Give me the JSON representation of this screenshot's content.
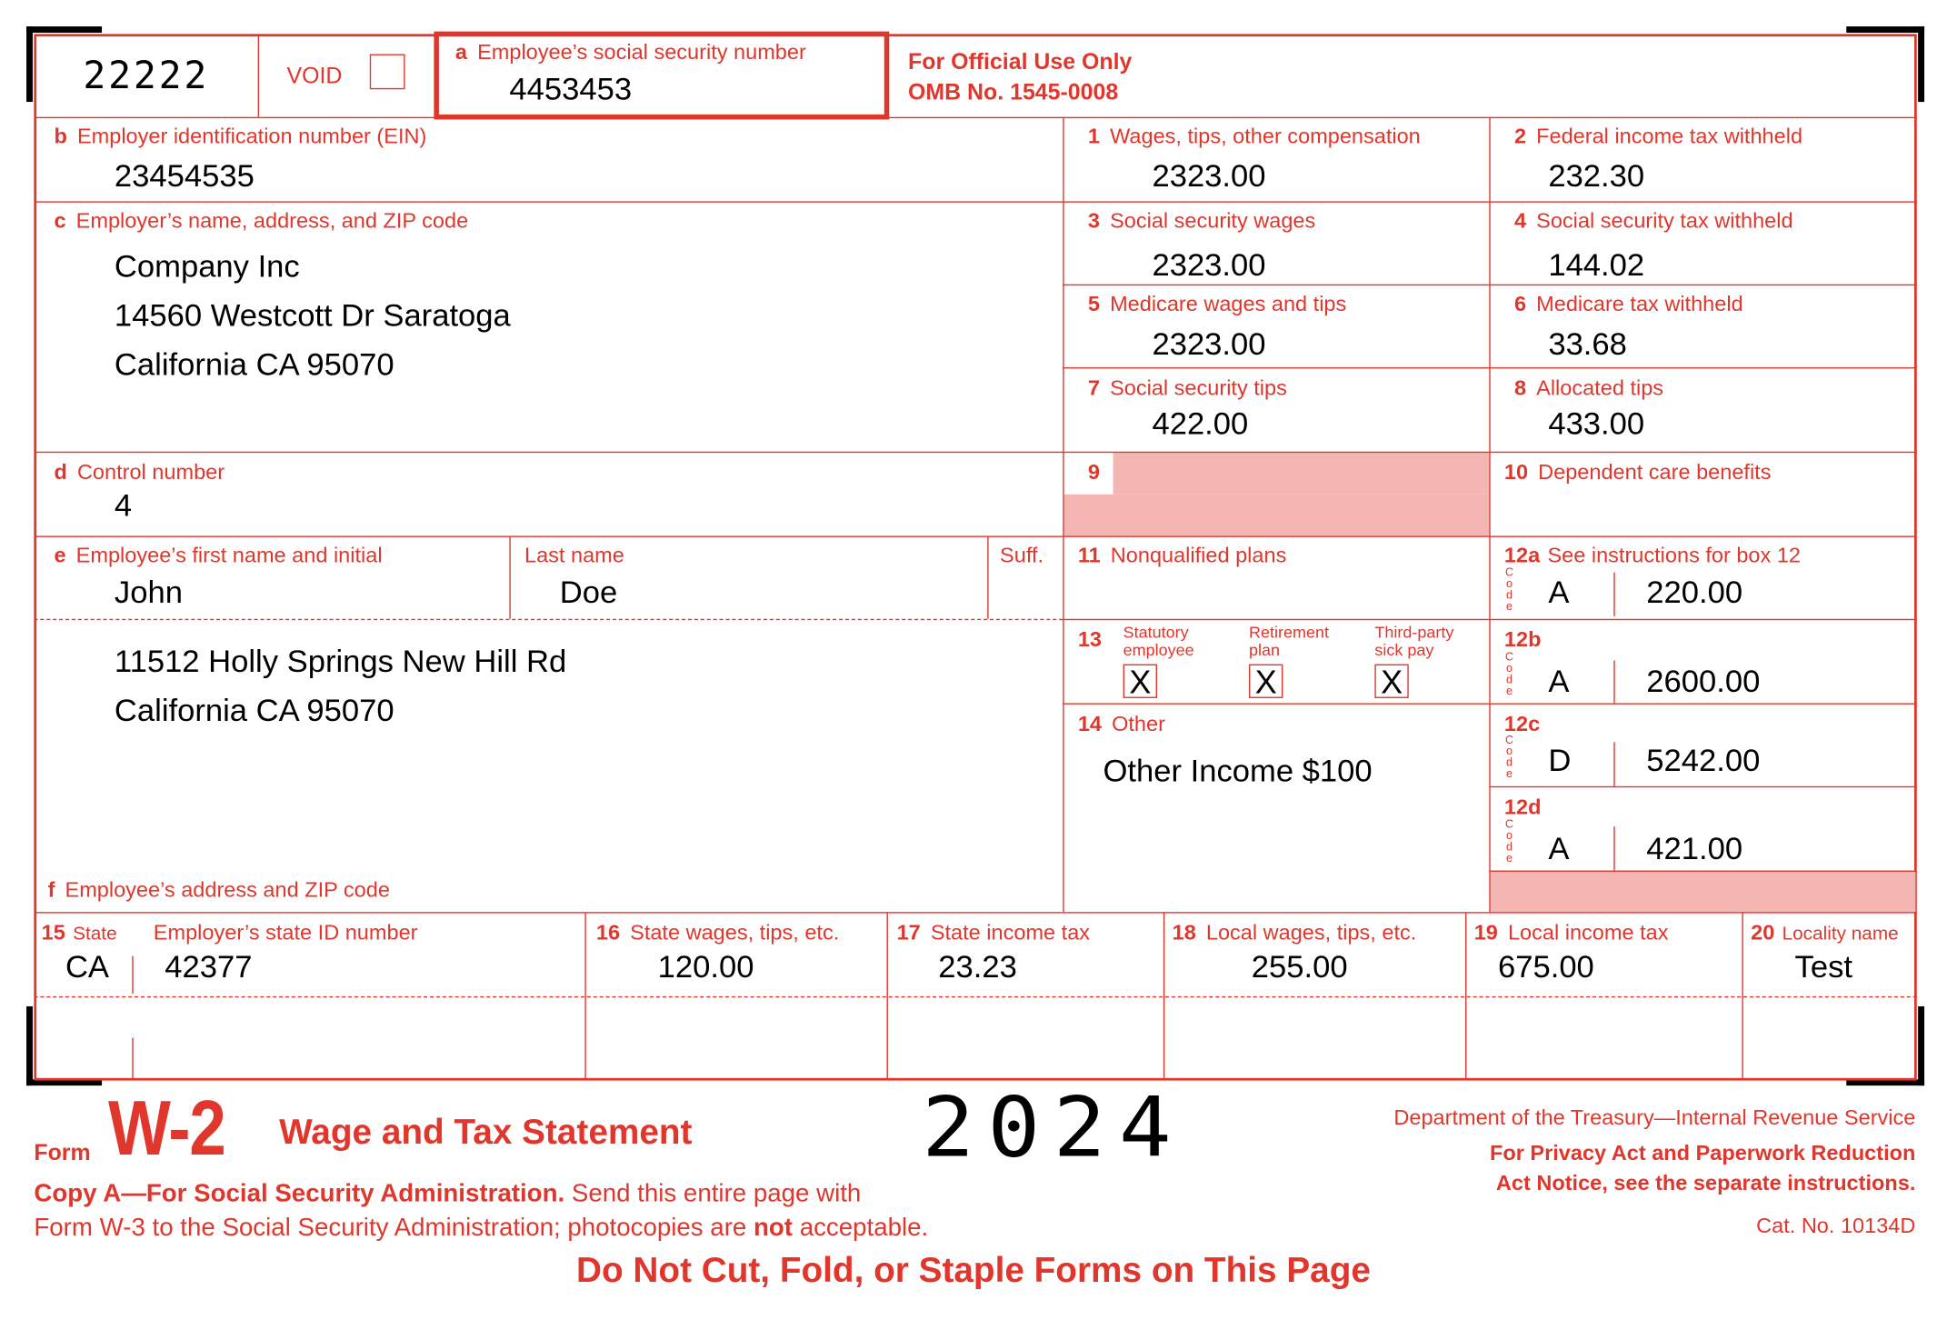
{
  "form_id": "22222",
  "void_label": "VOID",
  "a": {
    "label_letter": "a",
    "label": "Employee’s social security number",
    "value": "4453453"
  },
  "official": {
    "line1": "For Official Use Only",
    "line2": "OMB No. 1545-0008"
  },
  "b": {
    "letter": "b",
    "label": "Employer identification number (EIN)",
    "value": "23454535"
  },
  "c": {
    "letter": "c",
    "label": "Employer’s name, address, and ZIP code",
    "lines": [
      "Company Inc",
      "14560 Westcott Dr Saratoga",
      "California CA 95070"
    ]
  },
  "d": {
    "letter": "d",
    "label": "Control number",
    "value": "4"
  },
  "e": {
    "letter": "e",
    "label": "Employee’s first name and initial",
    "first": "John",
    "last_label": "Last name",
    "last": "Doe",
    "suff_label": "Suff."
  },
  "f": {
    "letter": "f",
    "label": "Employee’s address and ZIP code",
    "lines": [
      "11512 Holly Springs New Hill Rd",
      "California CA 95070"
    ]
  },
  "boxes": {
    "b1": {
      "num": "1",
      "label": "Wages, tips, other compensation",
      "value": "2323.00"
    },
    "b2": {
      "num": "2",
      "label": "Federal income tax withheld",
      "value": "232.30"
    },
    "b3": {
      "num": "3",
      "label": "Social security wages",
      "value": "2323.00"
    },
    "b4": {
      "num": "4",
      "label": "Social security tax withheld",
      "value": "144.02"
    },
    "b5": {
      "num": "5",
      "label": "Medicare wages and tips",
      "value": "2323.00"
    },
    "b6": {
      "num": "6",
      "label": "Medicare tax withheld",
      "value": "33.68"
    },
    "b7": {
      "num": "7",
      "label": "Social security tips",
      "value": "422.00"
    },
    "b8": {
      "num": "8",
      "label": "Allocated tips",
      "value": "433.00"
    },
    "b9": {
      "num": "9"
    },
    "b10": {
      "num": "10",
      "label": "Dependent care benefits"
    },
    "b11": {
      "num": "11",
      "label": "Nonqualified plans"
    },
    "b12a": {
      "num": "12a",
      "label": "See instructions for box 12",
      "code": "A",
      "value": "220.00"
    },
    "b12b": {
      "num": "12b",
      "code": "A",
      "value": "2600.00"
    },
    "b12c": {
      "num": "12c",
      "code": "D",
      "value": "5242.00"
    },
    "b12d": {
      "num": "12d",
      "code": "A",
      "value": "421.00"
    },
    "b13": {
      "num": "13",
      "statutory": {
        "l1": "Statutory",
        "l2": "employee",
        "mark": "X"
      },
      "retirement": {
        "l1": "Retirement",
        "l2": "plan",
        "mark": "X"
      },
      "sick": {
        "l1": "Third-party",
        "l2": "sick pay",
        "mark": "X"
      }
    },
    "b14": {
      "num": "14",
      "label": "Other",
      "value": "Other Income $100"
    },
    "b15": {
      "num": "15",
      "label": "State",
      "state": "CA",
      "id_label": "Employer’s state ID number",
      "id": "42377"
    },
    "b16": {
      "num": "16",
      "label": "State wages, tips, etc.",
      "value": "120.00"
    },
    "b17": {
      "num": "17",
      "label": "State income tax",
      "value": "23.23"
    },
    "b18": {
      "num": "18",
      "label": "Local wages, tips, etc.",
      "value": "255.00"
    },
    "b19": {
      "num": "19",
      "label": "Local income tax",
      "value": "675.00"
    },
    "b20": {
      "num": "20",
      "label": "Locality name",
      "value": "Test"
    }
  },
  "code_letters": [
    "C",
    "o",
    "d",
    "e"
  ],
  "footer": {
    "form_word": "Form",
    "form_name": "W-2",
    "title": "Wage and Tax Statement",
    "year": "2024",
    "copy_bold": "Copy A—For Social Security Administration.",
    "copy_rest": " Send this entire page with",
    "line2_a": "Form W-3 to the Social Security Administration; photocopies are ",
    "line2_not": "not",
    "line2_b": " acceptable.",
    "dept": "Department of the Treasury—Internal Revenue Service",
    "privacy1": "For Privacy Act and Paperwork Reduction",
    "privacy2": "Act Notice, see the separate instructions.",
    "cat": "Cat. No. 10134D",
    "warning": "Do Not Cut, Fold, or Staple Forms on This Page"
  },
  "colors": {
    "form_red": "#e0362c",
    "shade": "#f4b6b3"
  }
}
